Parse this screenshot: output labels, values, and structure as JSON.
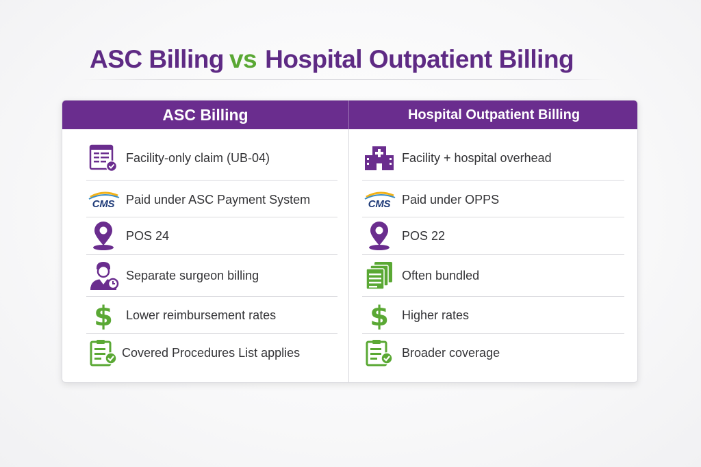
{
  "title": {
    "left": "ASC Billing",
    "vs": "vs",
    "right": "Hospital Outpatient Billing"
  },
  "table": {
    "left_header": "ASC Billing",
    "right_header": "Hospital Outpatient Billing",
    "left_rows": [
      {
        "icon": "claim-form-icon",
        "text": "Facility-only claim (UB-04)"
      },
      {
        "icon": "cms-logo",
        "text": "Paid under ASC Payment System"
      },
      {
        "icon": "location-pin-icon",
        "text": "POS 24"
      },
      {
        "icon": "surgeon-icon",
        "text": "Separate surgeon billing"
      },
      {
        "icon": "dollar-icon",
        "text": "Lower reimbursement rates"
      },
      {
        "icon": "clipboard-check-icon",
        "text": "Covered Procedures List applies"
      }
    ],
    "right_rows": [
      {
        "icon": "hospital-icon",
        "text": "Facility + hospital overhead"
      },
      {
        "icon": "cms-logo",
        "text": "Paid under OPPS"
      },
      {
        "icon": "location-pin-icon",
        "text": "POS 22"
      },
      {
        "icon": "stacked-documents-icon",
        "text": "Often bundled"
      },
      {
        "icon": "dollar-icon",
        "text": "Higher rates"
      },
      {
        "icon": "clipboard-check-icon",
        "text": "Broader coverage"
      }
    ]
  },
  "cms_logo_text": "CMS",
  "colors": {
    "purple": "#6a2d8e",
    "title_purple": "#5e2a84",
    "green": "#5aa834"
  }
}
